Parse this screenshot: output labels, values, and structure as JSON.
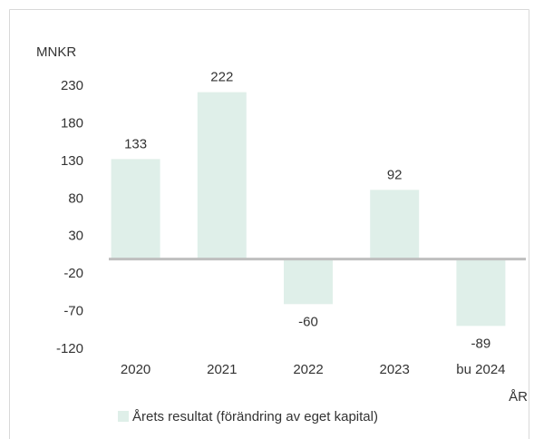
{
  "chart_data": {
    "type": "bar",
    "y_label": "MNKR",
    "x_label": "ÅR",
    "categories": [
      "2020",
      "2021",
      "2022",
      "2023",
      "bu 2024"
    ],
    "series": [
      {
        "name": "Årets resultat (förändring av eget kapital)",
        "color": "#dfefe9",
        "values": [
          133,
          222,
          -60,
          92,
          -89
        ]
      }
    ],
    "ylim": [
      -120,
      230
    ],
    "yticks": [
      230,
      180,
      130,
      80,
      30,
      -20,
      -70,
      -120
    ],
    "grid": false,
    "legend": "bottom"
  }
}
